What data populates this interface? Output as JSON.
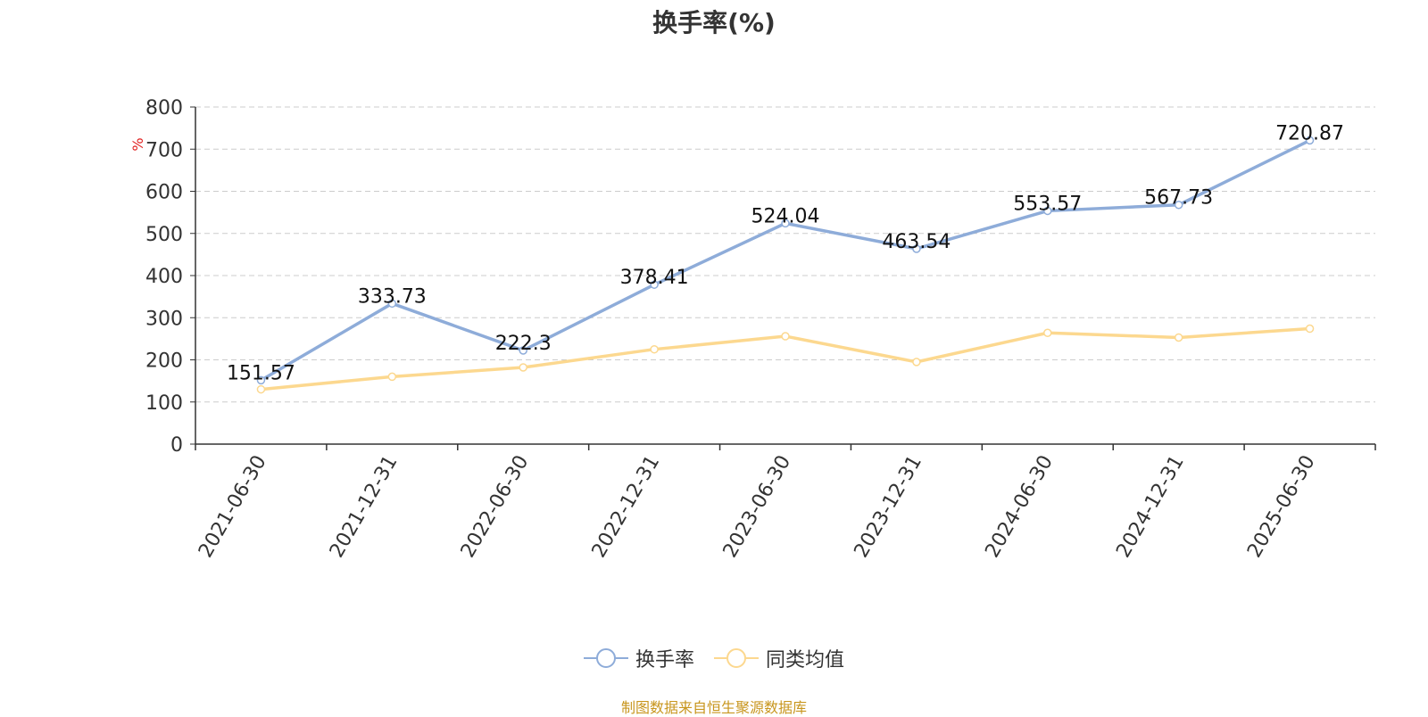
{
  "chart_data": {
    "type": "line",
    "title": "换手率(%)",
    "ylabel": "%",
    "xlabel": "",
    "categories": [
      "2021-06-30",
      "2021-12-31",
      "2022-06-30",
      "2022-12-31",
      "2023-06-30",
      "2023-12-31",
      "2024-06-30",
      "2024-12-31",
      "2025-06-30"
    ],
    "ylim": [
      0,
      800
    ],
    "yticks": [
      0,
      100,
      200,
      300,
      400,
      500,
      600,
      700,
      800
    ],
    "grid": true,
    "legend_position": "bottom",
    "series": [
      {
        "name": "换手率",
        "color": "#8eacd9",
        "show_labels": true,
        "values": [
          151.57,
          333.73,
          222.3,
          378.41,
          524.04,
          463.54,
          553.57,
          567.73,
          720.87
        ]
      },
      {
        "name": "同类均值",
        "color": "#fcd88f",
        "show_labels": false,
        "values": [
          130,
          160,
          182,
          225,
          256,
          195,
          264,
          253,
          274
        ]
      }
    ]
  },
  "source_note": "制图数据来自恒生聚源数据库"
}
